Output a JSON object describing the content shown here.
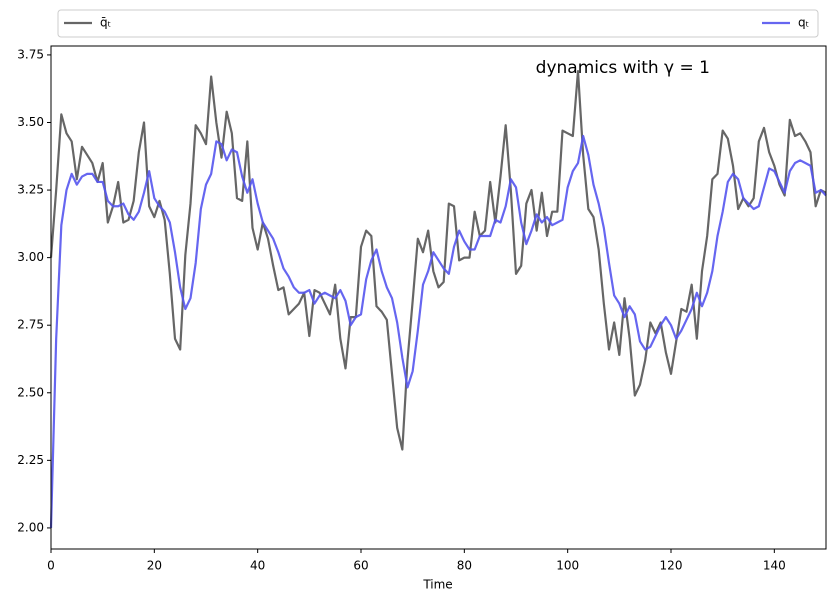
{
  "chart_data": {
    "type": "line",
    "annotation": "dynamics with γ = 1",
    "xlabel": "Time",
    "legend": "top-outside-expand",
    "x": [
      0,
      1,
      2,
      3,
      4,
      5,
      6,
      7,
      8,
      9,
      10,
      11,
      12,
      13,
      14,
      15,
      16,
      17,
      18,
      19,
      20,
      21,
      22,
      23,
      24,
      25,
      26,
      27,
      28,
      29,
      30,
      31,
      32,
      33,
      34,
      35,
      36,
      37,
      38,
      39,
      40,
      41,
      42,
      43,
      44,
      45,
      46,
      47,
      48,
      49,
      50,
      51,
      52,
      53,
      54,
      55,
      56,
      57,
      58,
      59,
      60,
      61,
      62,
      63,
      64,
      65,
      66,
      67,
      68,
      69,
      70,
      71,
      72,
      73,
      74,
      75,
      76,
      77,
      78,
      79,
      80,
      81,
      82,
      83,
      84,
      85,
      86,
      87,
      88,
      89,
      90,
      91,
      92,
      93,
      94,
      95,
      96,
      97,
      98,
      99,
      100,
      101,
      102,
      103,
      104,
      105,
      106,
      107,
      108,
      109,
      110,
      111,
      112,
      113,
      114,
      115,
      116,
      117,
      118,
      119,
      120,
      121,
      122,
      123,
      124,
      125,
      126,
      127,
      128,
      129,
      130,
      131,
      132,
      133,
      134,
      135,
      136,
      137,
      138,
      139,
      140,
      141,
      142,
      143,
      144,
      145,
      146,
      147,
      148,
      149,
      150
    ],
    "series": [
      {
        "name": "q̄ₜ",
        "color": "#555555",
        "values": [
          3.0,
          3.25,
          3.53,
          3.46,
          3.43,
          3.29,
          3.41,
          3.38,
          3.35,
          3.28,
          3.35,
          3.13,
          3.19,
          3.28,
          3.13,
          3.14,
          3.21,
          3.39,
          3.5,
          3.19,
          3.15,
          3.21,
          3.14,
          2.94,
          2.7,
          2.66,
          3.01,
          3.2,
          3.49,
          3.46,
          3.42,
          3.67,
          3.5,
          3.37,
          3.54,
          3.46,
          3.22,
          3.21,
          3.43,
          3.11,
          3.03,
          3.13,
          3.07,
          2.97,
          2.88,
          2.89,
          2.79,
          2.81,
          2.83,
          2.87,
          2.71,
          2.88,
          2.87,
          2.83,
          2.79,
          2.9,
          2.7,
          2.59,
          2.78,
          2.78,
          3.04,
          3.1,
          3.08,
          2.82,
          2.8,
          2.77,
          2.57,
          2.37,
          2.29,
          2.62,
          2.84,
          3.07,
          3.02,
          3.1,
          2.95,
          2.89,
          2.91,
          3.2,
          3.19,
          2.99,
          3.0,
          3.0,
          3.17,
          3.08,
          3.1,
          3.28,
          3.13,
          3.3,
          3.49,
          3.25,
          2.94,
          2.97,
          3.2,
          3.25,
          3.1,
          3.24,
          3.08,
          3.17,
          3.17,
          3.47,
          3.46,
          3.45,
          3.69,
          3.38,
          3.18,
          3.15,
          3.03,
          2.83,
          2.66,
          2.76,
          2.64,
          2.85,
          2.7,
          2.49,
          2.53,
          2.62,
          2.76,
          2.72,
          2.76,
          2.65,
          2.57,
          2.69,
          2.81,
          2.8,
          2.9,
          2.7,
          2.95,
          3.08,
          3.29,
          3.31,
          3.47,
          3.44,
          3.34,
          3.18,
          3.22,
          3.19,
          3.22,
          3.43,
          3.48,
          3.39,
          3.34,
          3.27,
          3.23,
          3.51,
          3.45,
          3.46,
          3.43,
          3.39,
          3.19,
          3.25,
          3.24
        ]
      },
      {
        "name": "qₜ",
        "color": "#5555ee",
        "values": [
          2.0,
          2.7,
          3.12,
          3.25,
          3.31,
          3.27,
          3.3,
          3.31,
          3.31,
          3.28,
          3.28,
          3.21,
          3.19,
          3.19,
          3.2,
          3.16,
          3.14,
          3.17,
          3.24,
          3.32,
          3.22,
          3.19,
          3.17,
          3.13,
          3.02,
          2.89,
          2.81,
          2.85,
          2.98,
          3.18,
          3.27,
          3.31,
          3.43,
          3.42,
          3.36,
          3.4,
          3.39,
          3.3,
          3.24,
          3.29,
          3.2,
          3.13,
          3.1,
          3.07,
          3.02,
          2.96,
          2.93,
          2.89,
          2.87,
          2.87,
          2.88,
          2.83,
          2.86,
          2.87,
          2.86,
          2.85,
          2.88,
          2.84,
          2.75,
          2.78,
          2.79,
          2.92,
          2.99,
          3.03,
          2.95,
          2.89,
          2.85,
          2.76,
          2.63,
          2.52,
          2.58,
          2.73,
          2.9,
          2.95,
          3.02,
          2.99,
          2.96,
          2.94,
          3.04,
          3.1,
          3.06,
          3.03,
          3.03,
          3.08,
          3.08,
          3.08,
          3.14,
          3.13,
          3.19,
          3.29,
          3.26,
          3.13,
          3.05,
          3.1,
          3.16,
          3.13,
          3.15,
          3.12,
          3.13,
          3.14,
          3.26,
          3.32,
          3.35,
          3.45,
          3.38,
          3.27,
          3.2,
          3.11,
          2.98,
          2.86,
          2.83,
          2.78,
          2.82,
          2.79,
          2.69,
          2.66,
          2.67,
          2.71,
          2.75,
          2.78,
          2.75,
          2.7,
          2.73,
          2.77,
          2.81,
          2.87,
          2.82,
          2.87,
          2.95,
          3.08,
          3.17,
          3.28,
          3.31,
          3.29,
          3.22,
          3.2,
          3.18,
          3.19,
          3.26,
          3.33,
          3.32,
          3.28,
          3.24,
          3.32,
          3.35,
          3.36,
          3.35,
          3.34,
          3.24,
          3.25,
          3.23
        ]
      }
    ],
    "xlim": [
      0,
      150
    ],
    "xticks": [
      0,
      20,
      40,
      60,
      80,
      100,
      120,
      140
    ],
    "ylim": [
      1.922,
      3.783
    ],
    "yticks": [
      {
        "value": 2,
        "label": "2.00"
      },
      {
        "value": 2.25,
        "label": "2.25"
      },
      {
        "value": 2.5,
        "label": "2.50"
      },
      {
        "value": 2.75,
        "label": "2.75"
      },
      {
        "value": 3,
        "label": "3.00"
      },
      {
        "value": 3.25,
        "label": "3.25"
      },
      {
        "value": 3.5,
        "label": "3.50"
      },
      {
        "value": 3.75,
        "label": "3.75"
      }
    ]
  }
}
